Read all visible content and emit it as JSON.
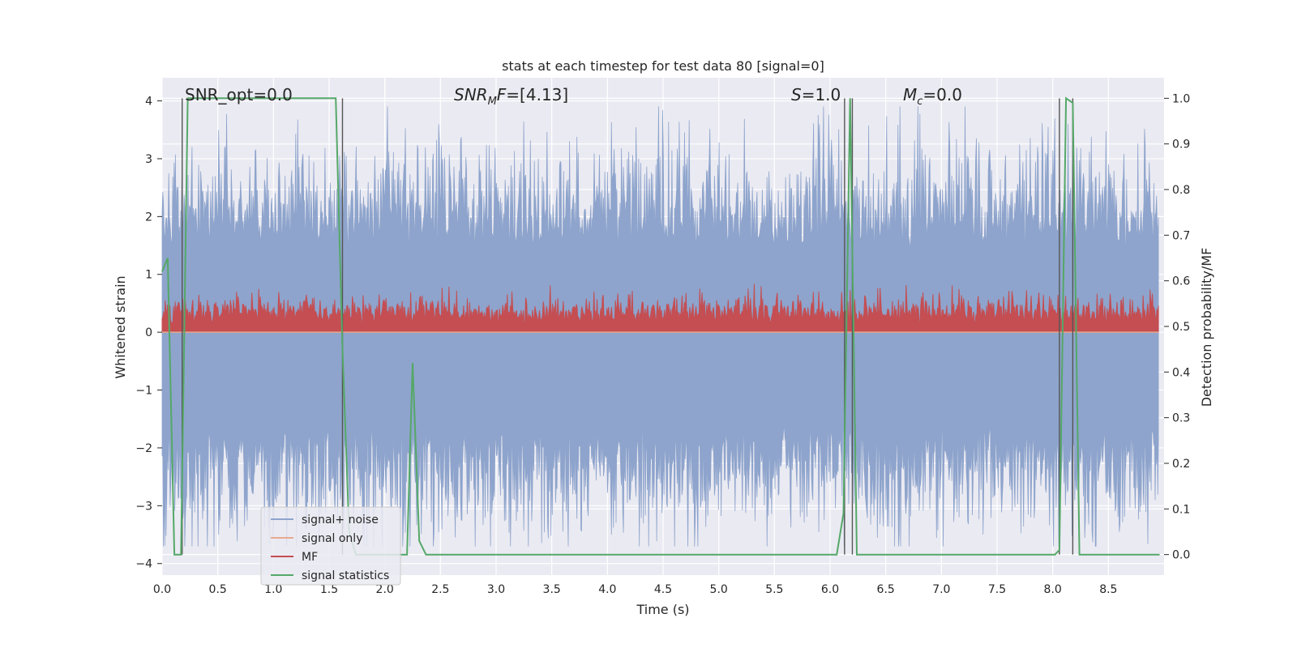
{
  "chart_data": {
    "type": "line",
    "title": "stats at each timestep for test data 80 [signal=0]",
    "xlabel": "Time (s)",
    "ylabel": "Whitened strain",
    "ylabel_right": "Detection probability/MF",
    "xlim": [
      0.0,
      9.0
    ],
    "ylim": [
      -4.2,
      4.4
    ],
    "ylim_right": [
      -0.045,
      1.045
    ],
    "x_ticks": [
      "0.0",
      "0.5",
      "1.0",
      "1.5",
      "2.0",
      "2.5",
      "3.0",
      "3.5",
      "4.0",
      "4.5",
      "5.0",
      "5.5",
      "6.0",
      "6.5",
      "7.0",
      "7.5",
      "8.0",
      "8.5"
    ],
    "y_ticks": [
      "4",
      "3",
      "2",
      "1",
      "0",
      "−1",
      "−2",
      "−3",
      "−4"
    ],
    "y_ticks_right": [
      "1.0",
      "0.9",
      "0.8",
      "0.7",
      "0.6",
      "0.5",
      "0.4",
      "0.3",
      "0.2",
      "0.1",
      "0.0"
    ],
    "annotations": [
      {
        "text": "SNR_opt=0.0",
        "italic_part": ""
      },
      {
        "text": "SNR",
        "sub": "M",
        "after": "F=[4.13]"
      },
      {
        "text": "S",
        "after": "=1.0"
      },
      {
        "text": "M",
        "sub": "c",
        "after": "=0.0"
      }
    ],
    "colors": {
      "noise": "#8ea4cc",
      "signal": "#e8a98f",
      "mf": "#c44e52",
      "stat": "#55a868",
      "plot_bg": "#eaeaf2",
      "grid": "#ffffff"
    },
    "legend": {
      "position": "lower-left",
      "entries": [
        "signal+ noise",
        "signal only",
        "MF",
        "signal statistics"
      ]
    },
    "series": [
      {
        "name": "signal+ noise",
        "axis": "left",
        "envelope_upper_typical": 2.0,
        "envelope_lower_typical": -2.2,
        "peak_max": 3.9,
        "peak_min": -3.7
      },
      {
        "name": "signal only",
        "axis": "left",
        "values_constant": 0.0
      },
      {
        "name": "MF",
        "axis": "left",
        "baseline": 0.0,
        "typical_max": 0.6,
        "peak_max": 1.0
      },
      {
        "name": "signal statistics",
        "axis": "right",
        "x": [
          0.0,
          0.05,
          0.11,
          0.17,
          0.23,
          0.29,
          1.56,
          1.62,
          1.68,
          1.74,
          2.06,
          2.2,
          2.25,
          2.31,
          2.37,
          6.06,
          6.12,
          6.18,
          6.24,
          8.02,
          8.06,
          8.12,
          8.18,
          8.24,
          8.96
        ],
        "y": [
          0.62,
          0.65,
          0.0,
          0.0,
          1.0,
          1.0,
          1.0,
          0.45,
          0.05,
          0.0,
          0.0,
          0.0,
          0.42,
          0.03,
          0.0,
          0.0,
          0.09,
          1.0,
          0.0,
          0.0,
          0.01,
          1.0,
          0.99,
          0.0,
          0.0
        ]
      }
    ],
    "vlines": [
      0.18,
      1.62,
      6.13,
      6.2,
      8.06,
      8.18
    ]
  }
}
